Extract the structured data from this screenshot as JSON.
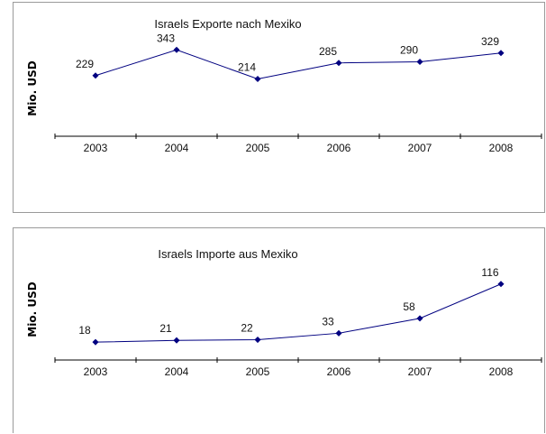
{
  "chart_data": [
    {
      "type": "line",
      "title": "Israels Exporte nach Mexiko",
      "ylabel": "Mio. USD",
      "xlabel": "",
      "categories": [
        "2003",
        "2004",
        "2005",
        "2006",
        "2007",
        "2008"
      ],
      "series": [
        {
          "values": [
            229,
            343,
            214,
            285,
            290,
            329
          ]
        }
      ],
      "ylim": [
        0,
        400
      ],
      "grid": false,
      "color": "#000080"
    },
    {
      "type": "line",
      "title": "Israels Importe aus Mexiko",
      "ylabel": "Mio. USD",
      "xlabel": "",
      "categories": [
        "2003",
        "2004",
        "2005",
        "2006",
        "2007",
        "2008"
      ],
      "series": [
        {
          "values": [
            18,
            21,
            22,
            33,
            58,
            116
          ]
        }
      ],
      "ylim": [
        0,
        140
      ],
      "grid": false,
      "color": "#000080"
    }
  ]
}
